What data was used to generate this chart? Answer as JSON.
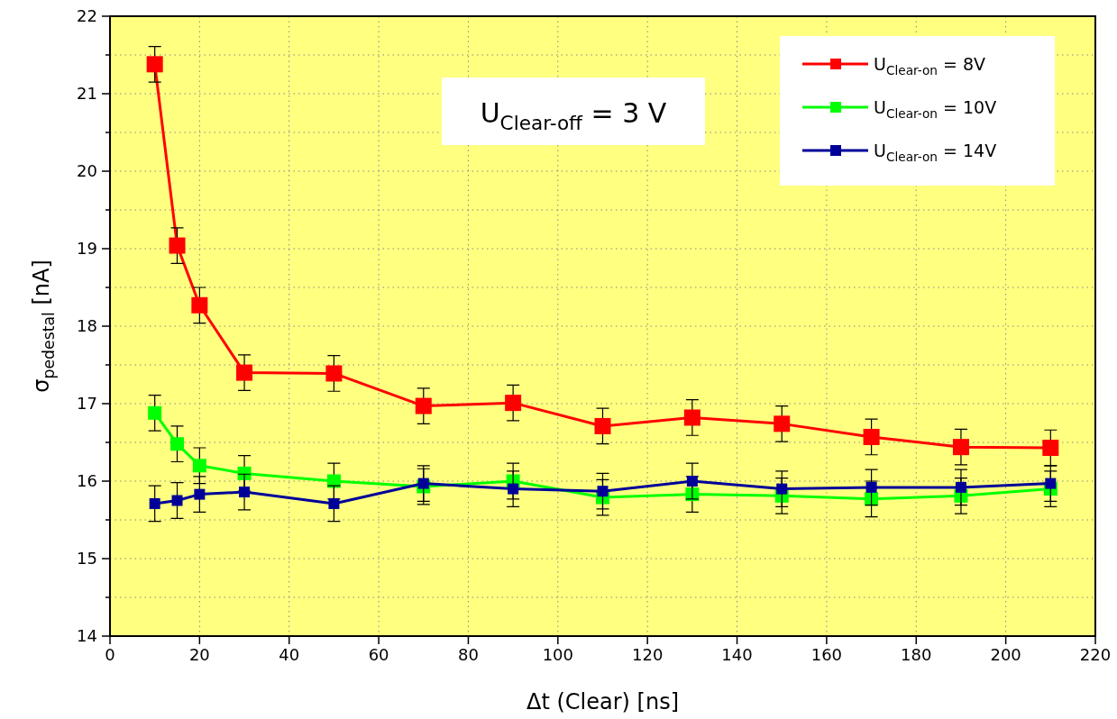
{
  "chart_data": {
    "type": "line",
    "xlabel": "Δt (Clear) [ns]",
    "ylabel": "σ$_{pedestal}$ [nA]",
    "x": [
      10,
      15,
      20,
      30,
      50,
      70,
      90,
      110,
      130,
      150,
      170,
      190,
      210
    ],
    "series": [
      {
        "name": "U$_{Clear-on}$ = 8V",
        "color": "#ff0000",
        "values": [
          21.38,
          19.04,
          18.27,
          17.4,
          17.39,
          16.97,
          17.01,
          16.71,
          16.82,
          16.74,
          16.57,
          16.44,
          16.43
        ],
        "errors": [
          0.23,
          0.23,
          0.23,
          0.23,
          0.23,
          0.23,
          0.23,
          0.23,
          0.23,
          0.23,
          0.23,
          0.23,
          0.23
        ]
      },
      {
        "name": "U$_{Clear-on}$ = 10V",
        "color": "#00ff00",
        "values": [
          16.88,
          16.48,
          16.2,
          16.1,
          16.0,
          15.93,
          16.0,
          15.79,
          15.83,
          15.81,
          15.77,
          15.81,
          15.9
        ],
        "errors": [
          0.23,
          0.23,
          0.23,
          0.23,
          0.23,
          0.23,
          0.23,
          0.23,
          0.23,
          0.23,
          0.23,
          0.23,
          0.23
        ]
      },
      {
        "name": "U$_{Clear-on}$ = 14V",
        "color": "#000099",
        "values": [
          15.71,
          15.75,
          15.83,
          15.86,
          15.71,
          15.97,
          15.9,
          15.87,
          16.0,
          15.9,
          15.92,
          15.92,
          15.97
        ],
        "errors": [
          0.23,
          0.23,
          0.23,
          0.23,
          0.23,
          0.23,
          0.23,
          0.23,
          0.23,
          0.23,
          0.23,
          0.23,
          0.23
        ]
      }
    ],
    "xlim": [
      0,
      220
    ],
    "xticks": [
      0,
      20,
      40,
      60,
      80,
      100,
      120,
      140,
      160,
      180,
      200,
      220
    ],
    "ylim": [
      14,
      22
    ],
    "yticks": [
      14,
      {
        "value": 14.5,
        "label": null
      },
      15,
      {
        "value": 15.5,
        "label": null
      },
      16,
      {
        "value": 16.5,
        "label": null
      },
      17,
      {
        "value": 17.5,
        "label": null
      },
      18,
      {
        "value": 18.5,
        "label": null
      },
      19,
      {
        "value": 19.5,
        "label": null
      },
      20,
      {
        "value": 20.5,
        "label": null
      },
      21,
      {
        "value": 21.5,
        "label": null
      },
      22
    ],
    "annotations": [
      "U$_{Clear-off}$ = 3 V"
    ],
    "grid": true,
    "legend": "top right",
    "marker": "square",
    "line_style": "solid"
  }
}
